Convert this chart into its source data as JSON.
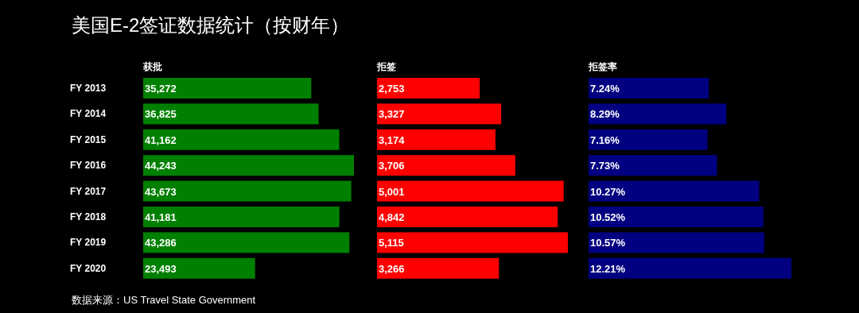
{
  "chart_data": [
    {
      "type": "bar",
      "orientation": "horizontal",
      "title": "美国E-2签证数据统计（按财年）",
      "subtitle": "获批",
      "categories": [
        "FY 2013",
        "FY 2014",
        "FY 2015",
        "FY 2016",
        "FY 2017",
        "FY 2018",
        "FY 2019",
        "FY 2020"
      ],
      "values": [
        35272,
        36825,
        41162,
        44243,
        43673,
        41181,
        43286,
        23493
      ],
      "value_labels": [
        "35,272",
        "36,825",
        "41,162",
        "44,243",
        "43,673",
        "41,181",
        "43,286",
        "23,493"
      ],
      "color": "#008000",
      "annotations": [
        "数据来源：US Travel State Government"
      ]
    },
    {
      "type": "bar",
      "orientation": "horizontal",
      "title": "拒签",
      "categories": [
        null,
        null,
        null,
        null,
        null,
        null,
        null,
        null
      ],
      "values": [
        2753,
        3327,
        3174,
        3706,
        5001,
        4842,
        5115,
        3266
      ],
      "value_labels": [
        "2,753",
        "3,327",
        "3,174",
        "3,706",
        "5,001",
        "4,842",
        "5,115",
        "3,266"
      ],
      "color": "#ff0000"
    },
    {
      "type": "bar",
      "orientation": "horizontal",
      "title": "拒签率",
      "categories": [
        null,
        null,
        null,
        null,
        null,
        null,
        null,
        null
      ],
      "values": [
        7.24,
        8.29,
        7.16,
        7.73,
        10.27,
        10.52,
        10.57,
        12.21
      ],
      "value_labels": [
        "7.24%",
        "8.29%",
        "7.16%",
        "7.73%",
        "10.27%",
        "10.52%",
        "10.57%",
        "12.21%"
      ],
      "color": "#000080"
    }
  ]
}
